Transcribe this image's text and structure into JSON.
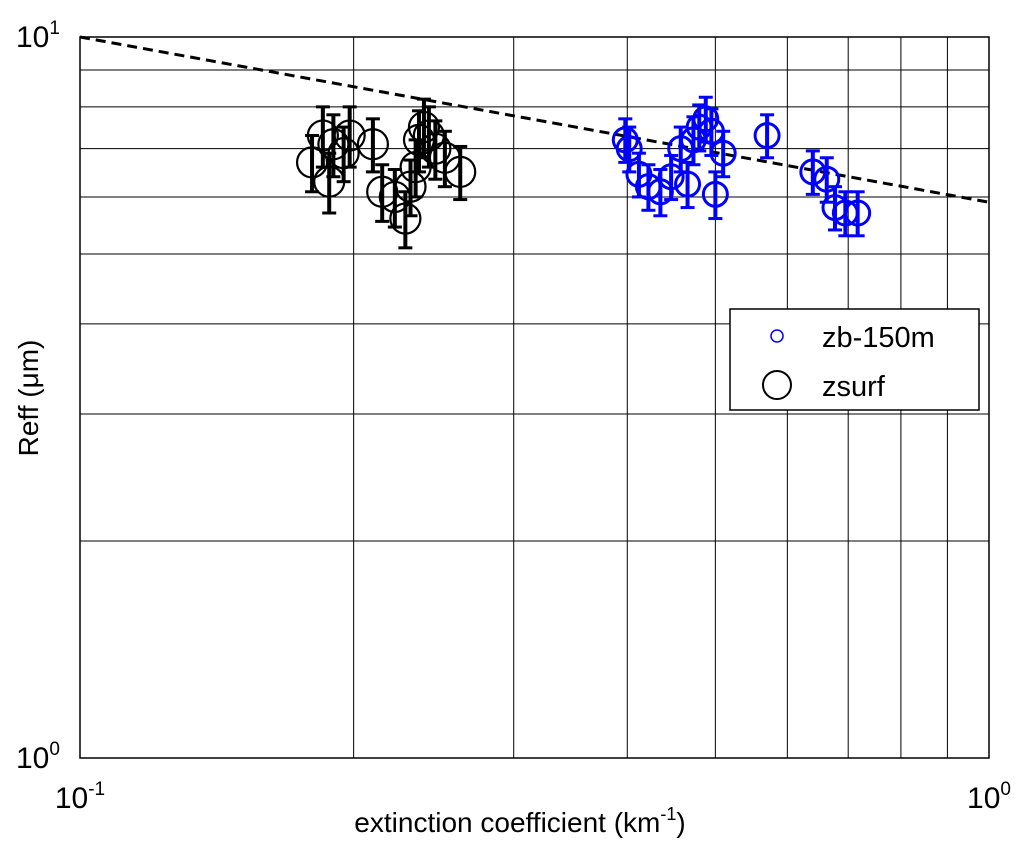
{
  "chart_data": {
    "type": "scatter",
    "xscale": "log",
    "yscale": "log",
    "xlim": [
      0.1,
      1
    ],
    "ylim": [
      1,
      10
    ],
    "grid": true,
    "xlabel": "extinction coefficient (km",
    "xlabel_sup": "-1",
    "xlabel_tail": ")",
    "ylabel": "Reff (μm)",
    "x_ticks": [
      {
        "base": "10",
        "exp": "-1",
        "value": 0.1
      },
      {
        "base": "10",
        "exp": "0",
        "value": 1
      }
    ],
    "y_ticks": [
      {
        "base": "10",
        "exp": "0",
        "value": 1
      },
      {
        "base": "10",
        "exp": "1",
        "value": 10
      }
    ],
    "legend_position": "right",
    "legend": [
      "zb-150m",
      "zsurf"
    ],
    "fit_line": {
      "style": "dashed",
      "color": "#000000",
      "x": [
        0.1,
        1
      ],
      "y": [
        10.0,
        5.9
      ]
    },
    "series": [
      {
        "name": "zb-150m",
        "color": "#0000ff",
        "points": [
          {
            "x": 0.398,
            "y": 7.2,
            "err": 0.5
          },
          {
            "x": 0.402,
            "y": 7.0,
            "err": 0.5
          },
          {
            "x": 0.412,
            "y": 6.45,
            "err": 0.45
          },
          {
            "x": 0.422,
            "y": 6.2,
            "err": 0.45
          },
          {
            "x": 0.435,
            "y": 6.1,
            "err": 0.45
          },
          {
            "x": 0.447,
            "y": 6.4,
            "err": 0.45
          },
          {
            "x": 0.458,
            "y": 7.0,
            "err": 0.5
          },
          {
            "x": 0.466,
            "y": 6.25,
            "err": 0.45
          },
          {
            "x": 0.473,
            "y": 7.2,
            "err": 0.55
          },
          {
            "x": 0.48,
            "y": 7.5,
            "err": 0.55
          },
          {
            "x": 0.488,
            "y": 7.7,
            "err": 0.55
          },
          {
            "x": 0.495,
            "y": 7.4,
            "err": 0.55
          },
          {
            "x": 0.5,
            "y": 6.05,
            "err": 0.45
          },
          {
            "x": 0.51,
            "y": 6.9,
            "err": 0.5
          },
          {
            "x": 0.57,
            "y": 7.3,
            "err": 0.5
          },
          {
            "x": 0.64,
            "y": 6.5,
            "err": 0.45
          },
          {
            "x": 0.663,
            "y": 6.35,
            "err": 0.45
          },
          {
            "x": 0.677,
            "y": 5.8,
            "err": 0.4
          },
          {
            "x": 0.695,
            "y": 5.7,
            "err": 0.4
          },
          {
            "x": 0.717,
            "y": 5.7,
            "err": 0.4
          }
        ]
      },
      {
        "name": "zsurf",
        "color": "#000000",
        "points": [
          {
            "x": 0.18,
            "y": 6.7,
            "err": 0.6
          },
          {
            "x": 0.185,
            "y": 7.3,
            "err": 0.7
          },
          {
            "x": 0.188,
            "y": 6.3,
            "err": 0.6
          },
          {
            "x": 0.19,
            "y": 7.1,
            "err": 0.7
          },
          {
            "x": 0.195,
            "y": 6.9,
            "err": 0.6
          },
          {
            "x": 0.198,
            "y": 7.3,
            "err": 0.7
          },
          {
            "x": 0.21,
            "y": 7.1,
            "err": 0.6
          },
          {
            "x": 0.215,
            "y": 6.1,
            "err": 0.55
          },
          {
            "x": 0.222,
            "y": 6.0,
            "err": 0.55
          },
          {
            "x": 0.228,
            "y": 5.6,
            "err": 0.5
          },
          {
            "x": 0.231,
            "y": 6.2,
            "err": 0.55
          },
          {
            "x": 0.234,
            "y": 6.6,
            "err": 0.6
          },
          {
            "x": 0.236,
            "y": 7.2,
            "err": 0.7
          },
          {
            "x": 0.239,
            "y": 7.5,
            "err": 0.7
          },
          {
            "x": 0.242,
            "y": 7.3,
            "err": 0.7
          },
          {
            "x": 0.246,
            "y": 7.0,
            "err": 0.65
          },
          {
            "x": 0.252,
            "y": 6.8,
            "err": 0.6
          },
          {
            "x": 0.262,
            "y": 6.5,
            "err": 0.55
          }
        ]
      }
    ]
  }
}
